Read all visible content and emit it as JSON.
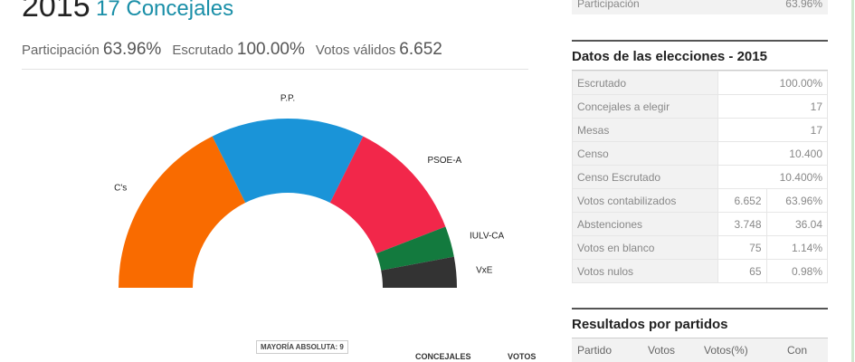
{
  "header": {
    "year": "2015",
    "seats_title": "17 Concejales"
  },
  "summary": [
    {
      "label": "Participación",
      "value": "63.96%"
    },
    {
      "label": "Escrutado",
      "value": "100.00%"
    },
    {
      "label": "Votos válidos",
      "value": "6.652"
    }
  ],
  "chart_data": {
    "type": "semicircle",
    "categories": [
      "C's",
      "P.P.",
      "PSOE-A",
      "IULV-CA",
      "VxE"
    ],
    "values": [
      6,
      5,
      4,
      1,
      1
    ],
    "colors": [
      "#f96b00",
      "#1a94d8",
      "#f2274a",
      "#137a3e",
      "#333333"
    ],
    "annotation": "MAYORÍA ABSOLUTA: 9",
    "columns": [
      "CONCEJALES",
      "VOTOS"
    ]
  },
  "top_row": {
    "label": "Participación",
    "value": "63.96%"
  },
  "datos": {
    "title": "Datos de las elecciones - 2015",
    "rows": [
      [
        "Escrutado",
        "100.00%"
      ],
      [
        "Concejales a elegir",
        "17"
      ],
      [
        "Mesas",
        "17"
      ],
      [
        "Censo",
        "10.400"
      ],
      [
        "Censo Escrutado",
        "10.400%"
      ],
      [
        "Votos contabilizados",
        "6.652",
        "63.96%"
      ],
      [
        "Abstenciones",
        "3.748",
        "36.04"
      ],
      [
        "Votos en blanco",
        "75",
        "1.14%"
      ],
      [
        "Votos nulos",
        "65",
        "0.98%"
      ]
    ]
  },
  "resultados": {
    "title": "Resultados por partidos",
    "headers": [
      "Partido",
      "Votos",
      "Votos(%)",
      "Con"
    ]
  }
}
